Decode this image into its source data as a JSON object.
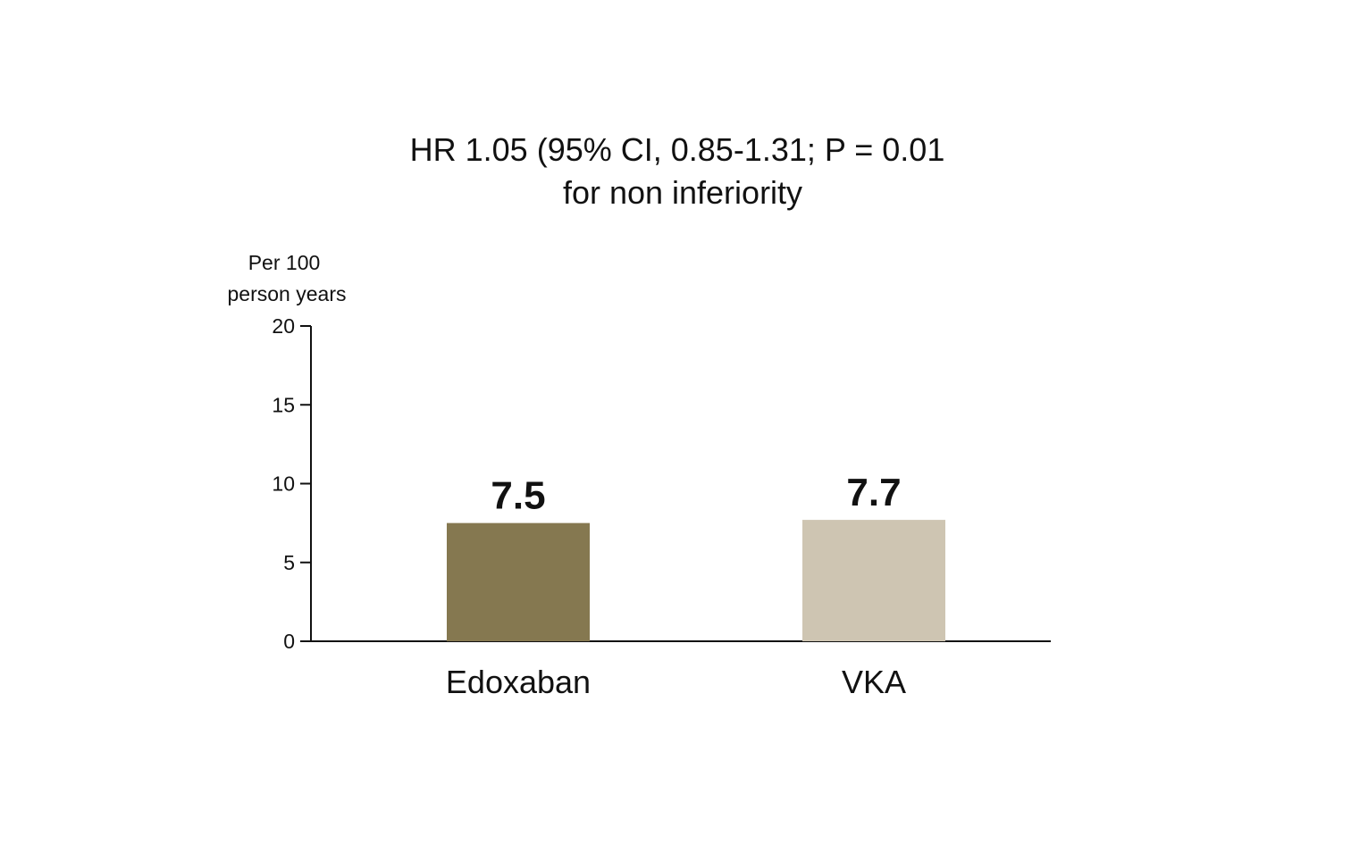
{
  "chart_data": {
    "type": "bar",
    "title": "HR 1.05 (95% CI, 0.85-1.31; P = 0.01",
    "subtitle": "for non inferiority",
    "ylabel": [
      "Per 100",
      "person years"
    ],
    "xlabel": "",
    "categories": [
      "Edoxaban",
      "VKA"
    ],
    "values": [
      7.5,
      7.7
    ],
    "value_labels": [
      "7.5",
      "7.7"
    ],
    "ylim": [
      0,
      20
    ],
    "yticks": [
      0,
      5,
      10,
      15,
      20
    ],
    "colors": [
      "#857850",
      "#cec5b2"
    ],
    "grid": false,
    "legend": "none"
  }
}
